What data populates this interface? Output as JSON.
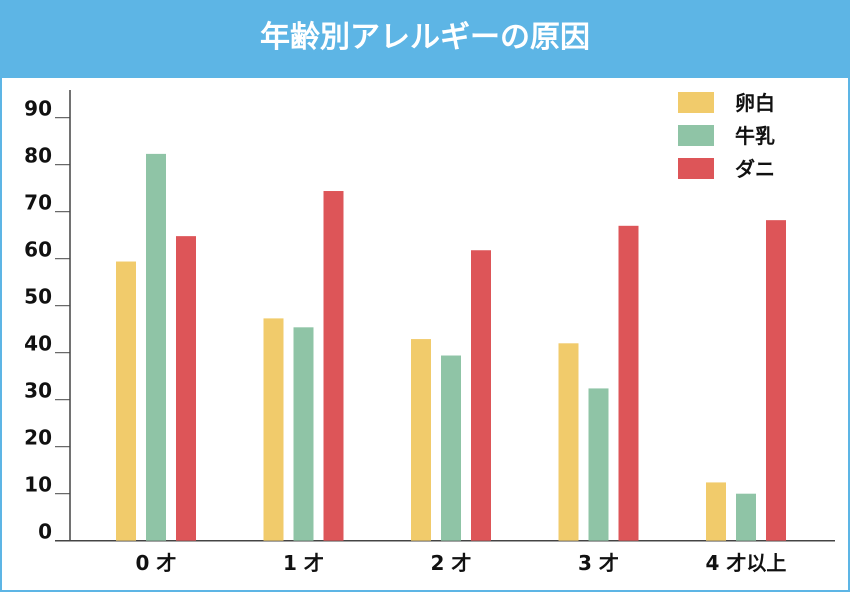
{
  "chart_data": {
    "type": "bar",
    "title": "年齢別アレルギーの原因",
    "xlabel": "",
    "ylabel": "",
    "ylim": [
      0,
      90
    ],
    "yticks": [
      0,
      10,
      20,
      30,
      40,
      50,
      60,
      70,
      80,
      90
    ],
    "categories": [
      "0 才",
      "1 才",
      "2 才",
      "3 才",
      "4 才以上"
    ],
    "series": [
      {
        "name": "卵白",
        "color": "#f1cb6b",
        "values": [
          59.4,
          47.3,
          42.9,
          42.0,
          12.4
        ]
      },
      {
        "name": "牛乳",
        "color": "#8fc4a6",
        "values": [
          82.3,
          45.4,
          39.4,
          32.4,
          10.0
        ]
      },
      {
        "name": "ダニ",
        "color": "#dd5558",
        "values": [
          64.8,
          74.4,
          61.8,
          67.0,
          68.2
        ]
      }
    ],
    "legend": "top-right",
    "grid": false,
    "title_bar_color": "#5db5e5"
  }
}
